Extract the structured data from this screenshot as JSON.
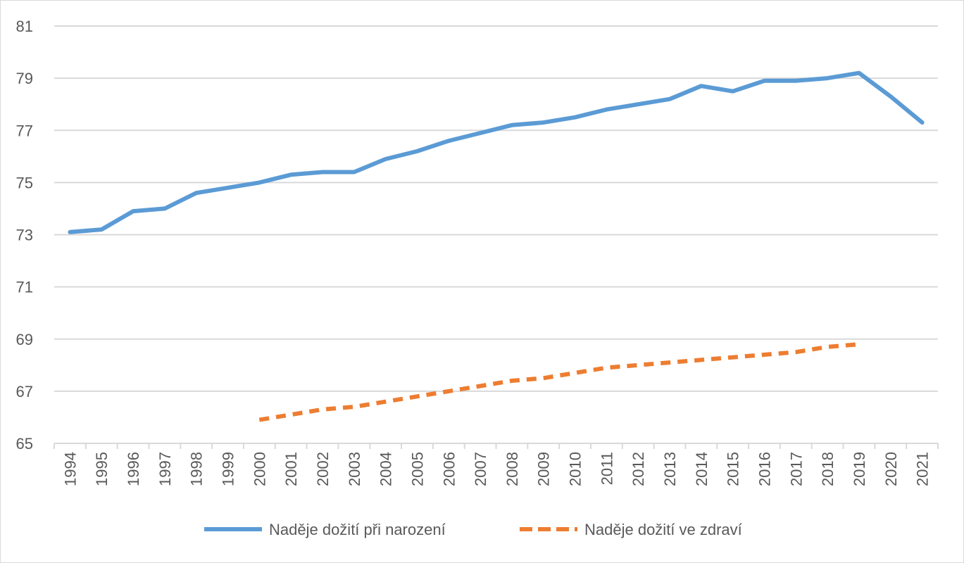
{
  "chart_data": {
    "type": "line",
    "title": "",
    "xlabel": "",
    "ylabel": "",
    "x": [
      "1994",
      "1995",
      "1996",
      "1997",
      "1998",
      "1999",
      "2000",
      "2001",
      "2002",
      "2003",
      "2004",
      "2005",
      "2006",
      "2007",
      "2008",
      "2009",
      "2010",
      "2011",
      "2012",
      "2013",
      "2014",
      "2015",
      "2016",
      "2017",
      "2018",
      "2019",
      "2020",
      "2021"
    ],
    "ylim": [
      65,
      81
    ],
    "yticks": [
      "65",
      "67",
      "69",
      "71",
      "73",
      "75",
      "77",
      "79",
      "81"
    ],
    "grid": true,
    "legend_position": "bottom",
    "series": [
      {
        "name": "Naděje dožití při narození",
        "color": "#5b9bd5",
        "style": "solid",
        "values": [
          73.1,
          73.2,
          73.9,
          74.0,
          74.6,
          74.8,
          75.0,
          75.3,
          75.4,
          75.4,
          75.9,
          76.2,
          76.6,
          76.9,
          77.2,
          77.3,
          77.5,
          77.8,
          78.0,
          78.2,
          78.7,
          78.5,
          78.9,
          78.9,
          79.0,
          79.2,
          78.3,
          77.3
        ]
      },
      {
        "name": "Naděje dožití ve zdraví",
        "color": "#ed7d31",
        "style": "dashed",
        "values": [
          null,
          null,
          null,
          null,
          null,
          null,
          65.9,
          66.1,
          66.3,
          66.4,
          66.6,
          66.8,
          67.0,
          67.2,
          67.4,
          67.5,
          67.7,
          67.9,
          68.0,
          68.1,
          68.2,
          68.3,
          68.4,
          68.5,
          68.7,
          68.8,
          null,
          null
        ]
      }
    ]
  }
}
